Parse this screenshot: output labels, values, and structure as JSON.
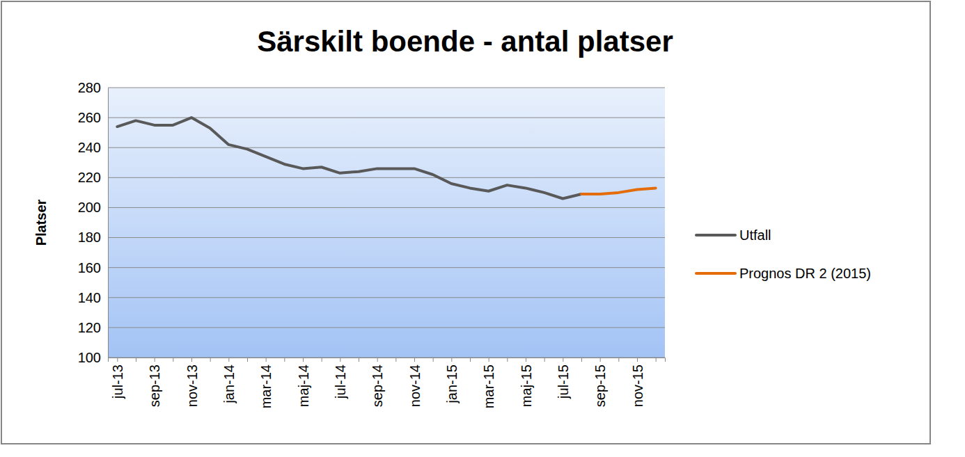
{
  "chart_data": {
    "type": "line",
    "title": "Särskilt boende - antal platser",
    "y_label": "Platser",
    "categories": [
      "jul-13",
      null,
      "sep-13",
      null,
      "nov-13",
      null,
      "jan-14",
      null,
      "mar-14",
      null,
      "maj-14",
      null,
      "jul-14",
      null,
      "sep-14",
      null,
      "nov-14",
      null,
      "jan-15",
      null,
      "mar-15",
      null,
      "maj-15",
      null,
      "jul-15",
      null,
      "sep-15",
      null,
      "nov-15",
      null
    ],
    "series": [
      {
        "name": "Utfall",
        "color": "#595959",
        "values": [
          254,
          258,
          255,
          255,
          260,
          253,
          242,
          239,
          234,
          229,
          226,
          227,
          223,
          224,
          226,
          226,
          226,
          222,
          216,
          213,
          211,
          215,
          213,
          210,
          206,
          209,
          null,
          null,
          null,
          null
        ]
      },
      {
        "name": "Prognos DR 2 (2015)",
        "color": "#e46c0a",
        "values": [
          null,
          null,
          null,
          null,
          null,
          null,
          null,
          null,
          null,
          null,
          null,
          null,
          null,
          null,
          null,
          null,
          null,
          null,
          null,
          null,
          null,
          null,
          null,
          null,
          null,
          209,
          209,
          210,
          212,
          213
        ]
      }
    ],
    "ylim": [
      100,
      280
    ],
    "yticks": [
      100,
      120,
      140,
      160,
      180,
      200,
      220,
      240,
      260,
      280
    ],
    "grid": true,
    "legend": "right"
  }
}
